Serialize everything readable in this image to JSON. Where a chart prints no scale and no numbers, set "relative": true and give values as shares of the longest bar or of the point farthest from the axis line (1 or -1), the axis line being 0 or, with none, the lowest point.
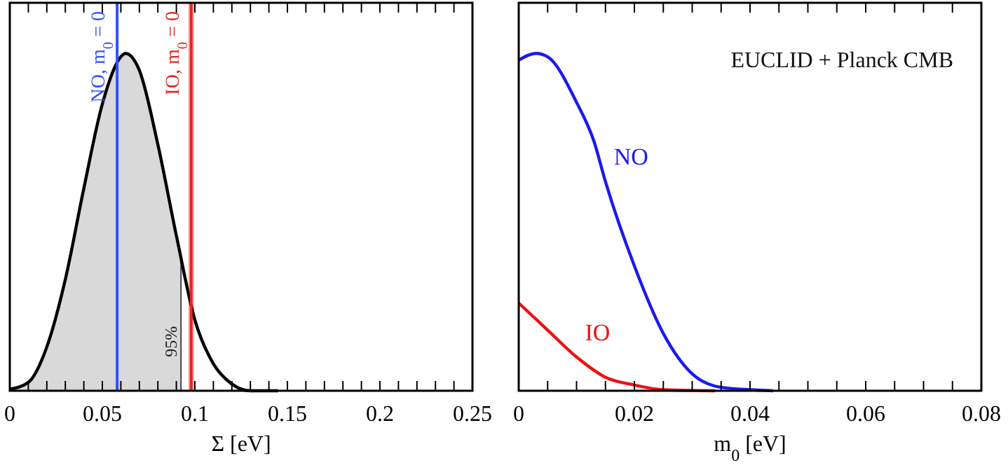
{
  "chart_data": [
    {
      "type": "line",
      "relative": true,
      "xlabel": "Σ [eV]",
      "xlim": [
        0,
        0.25
      ],
      "xticks": [
        0,
        {
          "value": 0.01,
          "label": null
        },
        {
          "value": 0.02,
          "label": null
        },
        {
          "value": 0.03,
          "label": null
        },
        {
          "value": 0.04,
          "label": null
        },
        0.05,
        {
          "value": 0.06,
          "label": null
        },
        {
          "value": 0.07,
          "label": null
        },
        {
          "value": 0.08,
          "label": null
        },
        {
          "value": 0.09,
          "label": null
        },
        0.1,
        {
          "value": 0.11,
          "label": null
        },
        {
          "value": 0.12,
          "label": null
        },
        {
          "value": 0.13,
          "label": null
        },
        {
          "value": 0.14,
          "label": null
        },
        0.15,
        {
          "value": 0.16,
          "label": null
        },
        {
          "value": 0.17,
          "label": null
        },
        {
          "value": 0.18,
          "label": null
        },
        {
          "value": 0.19,
          "label": null
        },
        0.2,
        {
          "value": 0.21,
          "label": null
        },
        {
          "value": 0.22,
          "label": null
        },
        {
          "value": 0.23,
          "label": null
        },
        {
          "value": 0.24,
          "label": null
        },
        0.25
      ],
      "series": [
        {
          "type": "area",
          "color": "#d9d9d9",
          "x": [
            0,
            0.01,
            0.02,
            0.03,
            0.04,
            0.05,
            0.06,
            0.0625,
            0.07,
            0.08,
            0.09,
            0.0925
          ],
          "values": [
            0.005,
            0.025,
            0.13,
            0.33,
            0.6,
            0.85,
            0.99,
            1,
            0.95,
            0.73,
            0.46,
            0.4
          ]
        },
        {
          "type": "line",
          "color": "#000000",
          "x": [
            0,
            0.01,
            0.02,
            0.03,
            0.04,
            0.05,
            0.06,
            0.0625,
            0.07,
            0.08,
            0.09,
            0.1,
            0.11,
            0.12,
            0.13,
            0.145
          ],
          "values": [
            0.005,
            0.025,
            0.13,
            0.33,
            0.6,
            0.85,
            0.99,
            1,
            0.95,
            0.73,
            0.46,
            0.21,
            0.08,
            0.02,
            0,
            0
          ]
        }
      ],
      "bands": [
        {
          "axis": "x",
          "from": 0.0965,
          "to": 0.0995,
          "color": "#f7b0b0"
        }
      ],
      "ref_lines": [
        {
          "axis": "x",
          "value": 0.058,
          "label": "NO, m$_{0}$ = 0",
          "color": "#3050ff"
        },
        {
          "axis": "x",
          "value": 0.098,
          "label": "IO, m$_{0}$ = 0",
          "color": "#ee2222"
        }
      ],
      "annotations": [
        {
          "text": "95%",
          "x": 0.0925,
          "y": 0.1
        }
      ]
    },
    {
      "type": "line",
      "relative": true,
      "xlabel": "m$_{0}$ [eV]",
      "xlim": [
        0,
        0.08
      ],
      "xticks": [
        0,
        {
          "value": 0.005,
          "label": null
        },
        {
          "value": 0.01,
          "label": null
        },
        {
          "value": 0.015,
          "label": null
        },
        0.02,
        {
          "value": 0.025,
          "label": null
        },
        {
          "value": 0.03,
          "label": null
        },
        {
          "value": 0.035,
          "label": null
        },
        0.04,
        {
          "value": 0.045,
          "label": null
        },
        {
          "value": 0.05,
          "label": null
        },
        {
          "value": 0.055,
          "label": null
        },
        0.06,
        {
          "value": 0.065,
          "label": null
        },
        {
          "value": 0.07,
          "label": null
        },
        {
          "value": 0.075,
          "label": null
        },
        0.08
      ],
      "series": [
        {
          "name": "NO",
          "color": "#1a1aee",
          "x": [
            0,
            0.003,
            0.005,
            0.01,
            0.013,
            0.015,
            0.02,
            0.025,
            0.03,
            0.035,
            0.04,
            0.044
          ],
          "values": [
            0.98,
            1,
            0.99,
            0.855,
            0.74,
            0.62,
            0.37,
            0.17,
            0.05,
            0.01,
            0.003,
            0
          ]
        },
        {
          "name": "IO",
          "color": "#ee1111",
          "x": [
            0,
            0.005,
            0.01,
            0.015,
            0.02,
            0.025,
            0.034
          ],
          "values": [
            0.26,
            0.18,
            0.1,
            0.04,
            0.017,
            0.003,
            0
          ]
        }
      ],
      "annotations": [
        "EUCLID + Planck CMB"
      ]
    }
  ]
}
